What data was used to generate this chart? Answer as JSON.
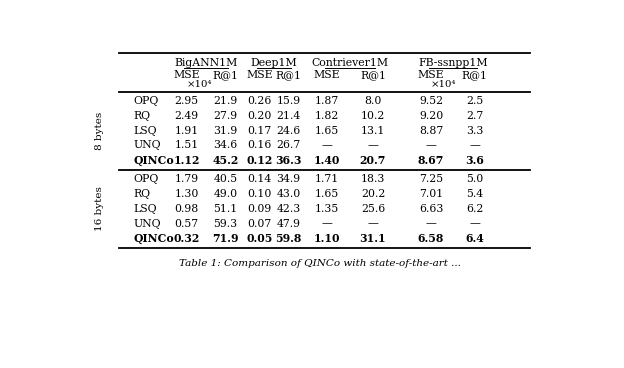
{
  "group_headers": [
    "BigANN1M",
    "Deep1M",
    "Contriever1M",
    "FB-ssnpp1M"
  ],
  "col_headers_line1": [
    "MSE",
    "R@1",
    "MSE",
    "R@1",
    "MSE",
    "R@1",
    "MSE",
    "R@1"
  ],
  "col_scale_note": "×10⁴",
  "row_group_labels": [
    "8 bytes",
    "16 bytes"
  ],
  "row_labels": [
    "OPQ",
    "RQ",
    "LSQ",
    "UNQ",
    "QINCo"
  ],
  "data_8bytes": [
    [
      "2.95",
      "21.9",
      "0.26",
      "15.9",
      "1.87",
      "8.0",
      "9.52",
      "2.5"
    ],
    [
      "2.49",
      "27.9",
      "0.20",
      "21.4",
      "1.82",
      "10.2",
      "9.20",
      "2.7"
    ],
    [
      "1.91",
      "31.9",
      "0.17",
      "24.6",
      "1.65",
      "13.1",
      "8.87",
      "3.3"
    ],
    [
      "1.51",
      "34.6",
      "0.16",
      "26.7",
      "—",
      "—",
      "—",
      "—"
    ],
    [
      "1.12",
      "45.2",
      "0.12",
      "36.3",
      "1.40",
      "20.7",
      "8.67",
      "3.6"
    ]
  ],
  "data_16bytes": [
    [
      "1.79",
      "40.5",
      "0.14",
      "34.9",
      "1.71",
      "18.3",
      "7.25",
      "5.0"
    ],
    [
      "1.30",
      "49.0",
      "0.10",
      "43.0",
      "1.65",
      "20.2",
      "7.01",
      "5.4"
    ],
    [
      "0.98",
      "51.1",
      "0.09",
      "42.3",
      "1.35",
      "25.6",
      "6.63",
      "6.2"
    ],
    [
      "0.57",
      "59.3",
      "0.07",
      "47.9",
      "—",
      "—",
      "—",
      "—"
    ],
    [
      "0.32",
      "71.9",
      "0.05",
      "59.8",
      "1.10",
      "31.1",
      "6.58",
      "6.4"
    ]
  ],
  "bold_row_idx": 4,
  "bg_color": "#ffffff",
  "text_color": "#000000",
  "caption": "Table 1: Comparison of QINCo with state-of-the-art ...",
  "figsize": [
    6.24,
    3.68
  ],
  "dpi": 100
}
